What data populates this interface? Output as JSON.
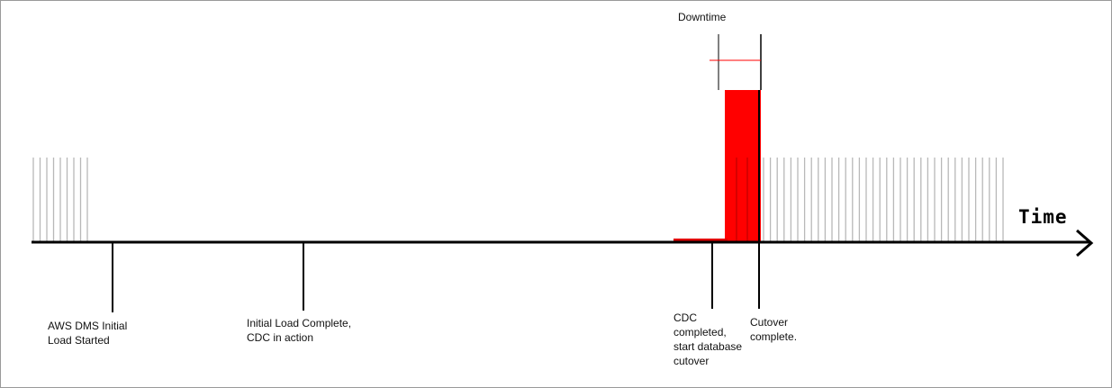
{
  "axis": {
    "title": "Time"
  },
  "downtime": {
    "label": "Downtime",
    "color": "#ff0000"
  },
  "ticks": [
    {
      "id": "dms-start",
      "label": "AWS DMS Initial\nLoad Started"
    },
    {
      "id": "initial-load-complete",
      "label": "Initial Load Complete,\nCDC in action"
    },
    {
      "id": "cdc-completed",
      "label": "CDC\ncompleted,\nstart database\ncutover"
    },
    {
      "id": "cutover-complete",
      "label": "Cutover\ncomplete."
    }
  ],
  "colors": {
    "activity_lines": "#b8b8b8",
    "axis": "#000000"
  }
}
